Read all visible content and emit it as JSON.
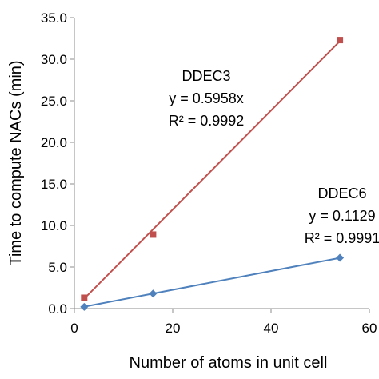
{
  "chart_data": {
    "type": "scatter",
    "xlabel": "Number of atoms in unit cell",
    "ylabel": "Time to compute NACs (min)",
    "xlim": [
      0,
      60
    ],
    "ylim": [
      0,
      35
    ],
    "x_ticks": [
      "0",
      "20",
      "40",
      "60"
    ],
    "y_ticks": [
      "0.0",
      "5.0",
      "10.0",
      "15.0",
      "20.0",
      "25.0",
      "30.0",
      "35.0"
    ],
    "grid": false,
    "series": [
      {
        "x": [
          2,
          16,
          54
        ],
        "y": [
          1.3,
          8.9,
          32.3
        ],
        "marker": "square",
        "color": "#c0504d",
        "trendline": {
          "slope": 0.5958,
          "x_range": [
            2,
            54
          ],
          "color": "#c0504d"
        }
      },
      {
        "x": [
          2,
          16,
          54
        ],
        "y": [
          0.2,
          1.8,
          6.1
        ],
        "marker": "diamond",
        "color": "#4f81bd",
        "trendline": {
          "slope": 0.1129,
          "x_range": [
            2,
            54
          ],
          "color": "#4f81bd"
        }
      }
    ],
    "annotations": [
      {
        "lines": [
          "DDEC3",
          "y = 0.5958x",
          "R² = 0.9992"
        ]
      },
      {
        "lines": [
          "DDEC6",
          "y = 0.1129",
          "R² = 0.9991"
        ]
      }
    ]
  }
}
